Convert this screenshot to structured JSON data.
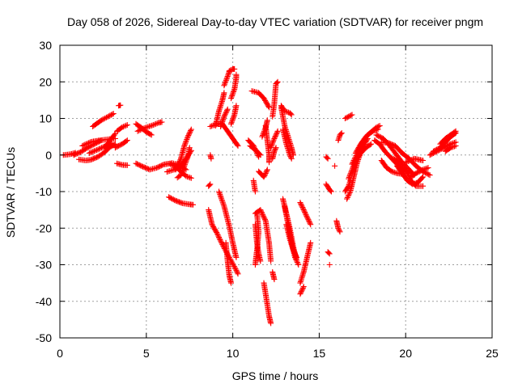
{
  "chart_data": {
    "type": "scatter",
    "title": "Day 058 of 2026, Sidereal Day-to-day VTEC variation (SDTVAR) for receiver pngm",
    "xlabel": "GPS time / hours",
    "ylabel": "SDTVAR / TECUs",
    "xlim": [
      0,
      25
    ],
    "ylim": [
      -50,
      30
    ],
    "xticks": [
      0,
      5,
      10,
      15,
      20,
      25
    ],
    "yticks": [
      -50,
      -40,
      -30,
      -20,
      -10,
      0,
      10,
      20,
      30
    ],
    "xtick_labels": [
      "0",
      "5",
      "10",
      "15",
      "20",
      "25"
    ],
    "ytick_labels": [
      "-50",
      "-40",
      "-30",
      "-20",
      "-10",
      "0",
      "10",
      "20",
      "30"
    ],
    "grid": true,
    "legend": "none",
    "marker": "plus",
    "color": "#ff0000",
    "tracks": [
      [
        [
          0.2,
          0.0
        ],
        [
          0.6,
          0.2
        ],
        [
          0.9,
          0.6
        ]
      ],
      [
        [
          0.8,
          0.0
        ],
        [
          1.2,
          0.8
        ],
        [
          1.6,
          2.0
        ],
        [
          2.0,
          3.0
        ],
        [
          2.4,
          4.0
        ]
      ],
      [
        [
          1.1,
          -1.2
        ],
        [
          1.5,
          -1.5
        ],
        [
          1.8,
          -1.3
        ],
        [
          2.2,
          -0.5
        ],
        [
          2.6,
          0.8
        ],
        [
          2.9,
          2.2
        ],
        [
          3.2,
          3.0
        ]
      ],
      [
        [
          1.3,
          2.5
        ],
        [
          1.8,
          3.6
        ],
        [
          2.3,
          4.0
        ],
        [
          2.8,
          4.3
        ],
        [
          3.2,
          4.5
        ]
      ],
      [
        [
          1.7,
          0.5
        ],
        [
          2.2,
          1.5
        ],
        [
          2.7,
          2.6
        ],
        [
          3.0,
          3.2
        ]
      ],
      [
        [
          1.9,
          7.8
        ],
        [
          2.4,
          9.5
        ],
        [
          2.9,
          10.8
        ],
        [
          3.1,
          11.3
        ]
      ],
      [
        [
          2.6,
          2.0
        ],
        [
          2.9,
          4.0
        ],
        [
          3.2,
          5.8
        ]
      ],
      [
        [
          3.3,
          6.5
        ],
        [
          3.6,
          7.6
        ],
        [
          3.9,
          8.2
        ]
      ],
      [
        [
          3.2,
          2.0
        ],
        [
          3.6,
          3.0
        ],
        [
          3.9,
          4.0
        ]
      ],
      [
        [
          3.3,
          -2.3
        ],
        [
          3.6,
          -2.7
        ],
        [
          3.9,
          -2.8
        ]
      ],
      [
        [
          3.4,
          13.5
        ],
        [
          3.5,
          13.6
        ]
      ],
      [
        [
          4.4,
          8.5
        ],
        [
          4.7,
          7.5
        ],
        [
          5.0,
          6.3
        ],
        [
          5.3,
          5.5
        ]
      ],
      [
        [
          4.5,
          6.5
        ],
        [
          4.8,
          7.2
        ],
        [
          5.1,
          7.7
        ],
        [
          5.4,
          8.2
        ],
        [
          5.7,
          8.8
        ],
        [
          5.9,
          9.0
        ]
      ],
      [
        [
          4.4,
          -2.3
        ],
        [
          4.8,
          -3.2
        ],
        [
          5.2,
          -4.0
        ],
        [
          5.6,
          -3.5
        ],
        [
          6.0,
          -2.6
        ],
        [
          6.5,
          -2.2
        ],
        [
          6.9,
          -2.7
        ],
        [
          7.3,
          -4.0
        ]
      ],
      [
        [
          6.4,
          -2.5
        ],
        [
          6.7,
          -3.2
        ],
        [
          7.0,
          -4.5
        ],
        [
          7.3,
          -5.8
        ],
        [
          7.6,
          -6.3
        ]
      ],
      [
        [
          6.2,
          -4.6
        ],
        [
          6.6,
          -4.0
        ],
        [
          7.0,
          -3.0
        ],
        [
          7.3,
          -1.0
        ],
        [
          7.6,
          1.2
        ]
      ],
      [
        [
          6.8,
          -6.2
        ],
        [
          7.0,
          -5.5
        ],
        [
          7.2,
          -3.0
        ],
        [
          7.4,
          -0.5
        ],
        [
          7.5,
          2.0
        ]
      ],
      [
        [
          6.7,
          -4.0
        ],
        [
          7.0,
          -1.0
        ],
        [
          7.2,
          2.5
        ],
        [
          7.4,
          5.0
        ],
        [
          7.6,
          7.0
        ]
      ],
      [
        [
          6.3,
          -11.5
        ],
        [
          6.7,
          -12.5
        ],
        [
          7.1,
          -13.2
        ],
        [
          7.5,
          -13.5
        ],
        [
          7.7,
          -13.6
        ]
      ],
      [
        [
          8.7,
          7.8
        ],
        [
          9.0,
          8.3
        ],
        [
          9.3,
          8.6
        ]
      ],
      [
        [
          8.7,
          0.0
        ],
        [
          8.75,
          -1.0
        ]
      ],
      [
        [
          8.6,
          -8.5
        ],
        [
          8.7,
          -8.0
        ]
      ],
      [
        [
          8.6,
          -15.0
        ],
        [
          8.8,
          -19.0
        ],
        [
          9.1,
          -21.5
        ],
        [
          9.4,
          -24.5
        ],
        [
          9.8,
          -28.0
        ],
        [
          10.2,
          -31.5
        ],
        [
          10.3,
          -32.5
        ]
      ],
      [
        [
          9.6,
          -24.0
        ],
        [
          9.7,
          -29.0
        ],
        [
          9.8,
          -33.0
        ],
        [
          9.9,
          -35.0
        ]
      ],
      [
        [
          9.2,
          -10.0
        ],
        [
          9.5,
          -14.0
        ],
        [
          9.8,
          -19.5
        ],
        [
          10.0,
          -24.0
        ],
        [
          10.2,
          -28.0
        ]
      ],
      [
        [
          9.0,
          8.0
        ],
        [
          9.2,
          12.0
        ],
        [
          9.4,
          15.0
        ],
        [
          9.5,
          17.0
        ]
      ],
      [
        [
          9.3,
          7.8
        ],
        [
          9.5,
          10.5
        ],
        [
          9.7,
          12.5
        ]
      ],
      [
        [
          9.5,
          19.0
        ],
        [
          9.7,
          21.5
        ],
        [
          9.8,
          22.8
        ]
      ],
      [
        [
          9.8,
          23.0
        ],
        [
          10.0,
          23.5
        ],
        [
          10.1,
          23.5
        ]
      ],
      [
        [
          9.9,
          15.5
        ],
        [
          10.1,
          18.0
        ],
        [
          10.2,
          21.0
        ],
        [
          10.2,
          22.0
        ]
      ],
      [
        [
          9.4,
          8.5
        ],
        [
          9.7,
          6.5
        ],
        [
          10.0,
          4.5
        ],
        [
          10.3,
          2.5
        ]
      ],
      [
        [
          9.9,
          8.5
        ],
        [
          10.1,
          11.0
        ],
        [
          10.2,
          13.5
        ]
      ],
      [
        [
          10.9,
          4.0
        ],
        [
          11.2,
          2.5
        ],
        [
          11.5,
          -0.5
        ]
      ],
      [
        [
          11.0,
          2.5
        ],
        [
          11.3,
          1.5
        ],
        [
          11.5,
          0.5
        ],
        [
          11.6,
          0.0
        ]
      ],
      [
        [
          11.2,
          -7.0
        ],
        [
          11.3,
          -10.0
        ]
      ],
      [
        [
          11.3,
          -16.0
        ],
        [
          11.6,
          -15.0
        ],
        [
          11.9,
          -18.0
        ],
        [
          12.1,
          -24.0
        ],
        [
          12.2,
          -29.0
        ]
      ],
      [
        [
          11.3,
          -19.0
        ],
        [
          11.4,
          -24.0
        ],
        [
          11.5,
          -27.0
        ],
        [
          11.6,
          -29.0
        ]
      ],
      [
        [
          11.4,
          -16.0
        ],
        [
          11.5,
          -21.0
        ],
        [
          11.4,
          -26.0
        ],
        [
          11.3,
          -30.0
        ]
      ],
      [
        [
          11.1,
          17.5
        ],
        [
          11.5,
          17.0
        ],
        [
          11.8,
          15.5
        ],
        [
          12.1,
          13.0
        ]
      ],
      [
        [
          11.7,
          5.0
        ],
        [
          11.9,
          7.5
        ],
        [
          12.0,
          9.5
        ]
      ],
      [
        [
          11.9,
          8.0
        ],
        [
          12.0,
          4.0
        ],
        [
          12.1,
          0.0
        ],
        [
          12.1,
          -2.0
        ]
      ],
      [
        [
          11.5,
          -4.5
        ],
        [
          11.8,
          -6.0
        ],
        [
          12.0,
          -4.0
        ]
      ],
      [
        [
          11.8,
          -35.0
        ],
        [
          11.9,
          -38.0
        ],
        [
          12.0,
          -41.0
        ],
        [
          12.1,
          -44.0
        ],
        [
          12.2,
          -46.0
        ]
      ],
      [
        [
          12.3,
          -32.0
        ],
        [
          12.4,
          -34.0
        ]
      ],
      [
        [
          12.3,
          10.5
        ],
        [
          12.4,
          14.0
        ],
        [
          12.5,
          19.5
        ],
        [
          12.6,
          20.0
        ]
      ],
      [
        [
          12.2,
          2.0
        ],
        [
          12.4,
          4.5
        ],
        [
          12.6,
          6.5
        ]
      ],
      [
        [
          12.3,
          -1.0
        ],
        [
          12.4,
          1.0
        ],
        [
          12.5,
          2.0
        ]
      ],
      [
        [
          12.8,
          13.5
        ],
        [
          13.0,
          12.0
        ],
        [
          13.3,
          11.5
        ],
        [
          13.4,
          11.0
        ]
      ],
      [
        [
          12.8,
          13.0
        ],
        [
          13.0,
          8.0
        ],
        [
          13.2,
          5.0
        ],
        [
          13.4,
          2.0
        ],
        [
          13.5,
          0.0
        ]
      ],
      [
        [
          12.9,
          7.0
        ],
        [
          13.1,
          3.0
        ],
        [
          13.3,
          0.0
        ],
        [
          13.4,
          -1.0
        ]
      ],
      [
        [
          12.9,
          -12.0
        ],
        [
          13.1,
          -16.0
        ],
        [
          13.3,
          -20.0
        ],
        [
          13.5,
          -25.0
        ],
        [
          13.7,
          -29.0
        ]
      ],
      [
        [
          13.0,
          -14.0
        ],
        [
          13.2,
          -19.0
        ],
        [
          13.4,
          -24.0
        ],
        [
          13.6,
          -28.0
        ],
        [
          13.8,
          -30.0
        ]
      ],
      [
        [
          13.1,
          -19.0
        ],
        [
          13.3,
          -23.0
        ],
        [
          13.5,
          -26.0
        ],
        [
          13.7,
          -28.0
        ]
      ],
      [
        [
          13.9,
          -13.0
        ],
        [
          14.1,
          -15.0
        ],
        [
          14.3,
          -17.0
        ],
        [
          14.5,
          -19.0
        ]
      ],
      [
        [
          13.9,
          -35.0
        ],
        [
          14.1,
          -32.0
        ],
        [
          14.3,
          -28.0
        ],
        [
          14.5,
          -24.0
        ]
      ],
      [
        [
          13.9,
          -38.0
        ],
        [
          14.0,
          -37.0
        ],
        [
          14.1,
          -36.0
        ]
      ],
      [
        [
          15.4,
          -8.0
        ],
        [
          15.6,
          -9.5
        ],
        [
          15.7,
          -10.0
        ]
      ],
      [
        [
          15.4,
          -0.5
        ],
        [
          15.5,
          -1.0
        ]
      ],
      [
        [
          15.5,
          -26.5
        ],
        [
          15.6,
          -27.0
        ]
      ],
      [
        [
          15.6,
          -30.0
        ]
      ],
      [
        [
          15.9,
          -3.0
        ]
      ],
      [
        [
          16.0,
          -18.0
        ],
        [
          16.1,
          -20.0
        ],
        [
          16.2,
          -21.0
        ]
      ],
      [
        [
          16.1,
          4.0
        ],
        [
          16.2,
          5.5
        ],
        [
          16.3,
          6.0
        ]
      ],
      [
        [
          16.5,
          10.0
        ],
        [
          16.7,
          10.5
        ],
        [
          16.9,
          11.0
        ]
      ],
      [
        [
          16.5,
          -10.0
        ],
        [
          16.7,
          -8.5
        ],
        [
          16.8,
          -7.0
        ]
      ],
      [
        [
          16.6,
          -12.0
        ],
        [
          16.8,
          -10.0
        ],
        [
          17.0,
          -6.0
        ],
        [
          17.2,
          -2.0
        ],
        [
          17.5,
          2.0
        ],
        [
          17.8,
          4.5
        ]
      ],
      [
        [
          16.7,
          -6.5
        ],
        [
          16.9,
          -4.0
        ],
        [
          17.1,
          -1.5
        ],
        [
          17.4,
          0.5
        ],
        [
          17.7,
          2.0
        ],
        [
          18.0,
          3.0
        ]
      ],
      [
        [
          16.9,
          -2.5
        ],
        [
          17.2,
          0.5
        ],
        [
          17.5,
          3.5
        ],
        [
          17.8,
          5.5
        ],
        [
          18.1,
          6.5
        ],
        [
          18.4,
          7.0
        ]
      ],
      [
        [
          17.1,
          0.5
        ],
        [
          17.4,
          3.0
        ],
        [
          17.7,
          5.0
        ],
        [
          18.0,
          6.3
        ],
        [
          18.3,
          7.5
        ],
        [
          18.5,
          8.0
        ]
      ],
      [
        [
          18.2,
          4.0
        ],
        [
          18.5,
          3.0
        ],
        [
          18.8,
          1.0
        ],
        [
          19.2,
          -1.0
        ],
        [
          19.6,
          -3.0
        ],
        [
          20.0,
          -4.5
        ],
        [
          20.3,
          -5.0
        ]
      ],
      [
        [
          18.3,
          5.5
        ],
        [
          18.7,
          4.5
        ],
        [
          19.0,
          3.0
        ],
        [
          19.4,
          0.5
        ],
        [
          19.8,
          -2.0
        ],
        [
          20.2,
          -4.0
        ],
        [
          20.5,
          -5.5
        ]
      ],
      [
        [
          18.6,
          -1.5
        ],
        [
          18.9,
          -3.5
        ],
        [
          19.2,
          -4.5
        ],
        [
          19.5,
          -5.0
        ],
        [
          19.8,
          -5.2
        ]
      ],
      [
        [
          18.6,
          3.5
        ],
        [
          19.0,
          3.3
        ],
        [
          19.4,
          2.5
        ],
        [
          19.8,
          0.5
        ],
        [
          20.2,
          -1.0
        ],
        [
          20.6,
          -3.0
        ],
        [
          21.0,
          -4.5
        ],
        [
          21.4,
          -5.5
        ]
      ],
      [
        [
          19.3,
          -1.0
        ],
        [
          19.6,
          -2.0
        ],
        [
          20.0,
          -4.0
        ],
        [
          20.3,
          -7.0
        ],
        [
          20.6,
          -8.5
        ],
        [
          21.0,
          -8.5
        ]
      ],
      [
        [
          19.5,
          -3.0
        ],
        [
          19.8,
          -5.0
        ],
        [
          20.1,
          -7.0
        ],
        [
          20.4,
          -8.0
        ],
        [
          20.7,
          -7.5
        ],
        [
          21.0,
          -6.0
        ]
      ],
      [
        [
          20.3,
          -6.0
        ],
        [
          20.6,
          -5.0
        ],
        [
          21.0,
          -4.0
        ],
        [
          21.3,
          -3.5
        ]
      ],
      [
        [
          20.0,
          -2.0
        ],
        [
          20.5,
          -1.0
        ],
        [
          21.0,
          -1.5
        ]
      ],
      [
        [
          21.4,
          0.0
        ],
        [
          21.8,
          1.0
        ],
        [
          22.2,
          2.0
        ],
        [
          22.6,
          3.0
        ],
        [
          22.9,
          3.5
        ]
      ],
      [
        [
          21.6,
          1.0
        ],
        [
          22.0,
          2.0
        ],
        [
          22.3,
          3.5
        ],
        [
          22.6,
          5.0
        ],
        [
          22.9,
          6.0
        ]
      ],
      [
        [
          22.0,
          3.0
        ],
        [
          22.3,
          4.5
        ],
        [
          22.6,
          5.5
        ],
        [
          22.9,
          6.5
        ]
      ],
      [
        [
          22.3,
          1.0
        ],
        [
          22.6,
          2.0
        ],
        [
          22.9,
          2.5
        ]
      ]
    ]
  }
}
